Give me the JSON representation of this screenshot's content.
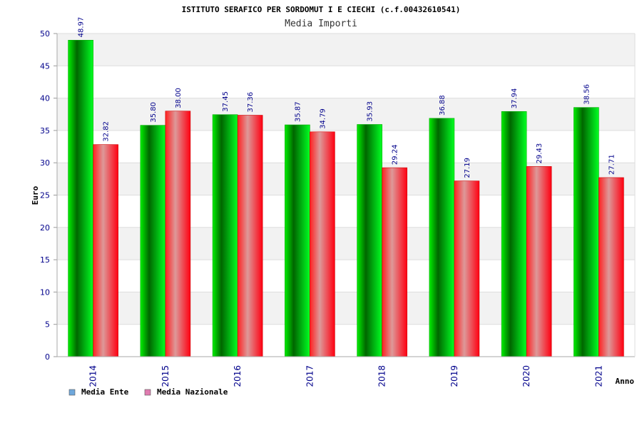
{
  "chart_data": {
    "type": "bar",
    "title": "ISTITUTO SERAFICO PER SORDOMUT I E CIECHI (c.f.00432610541)",
    "subtitle": "Media Importi",
    "xlabel": "Anno",
    "ylabel": "Euro",
    "ylim": [
      0,
      50
    ],
    "yticks": [
      0,
      5,
      10,
      15,
      20,
      25,
      30,
      35,
      40,
      45,
      50
    ],
    "categories": [
      "2014",
      "2015",
      "2016",
      "2017",
      "2018",
      "2019",
      "2020",
      "2021"
    ],
    "series": [
      {
        "name": "Media Ente",
        "values": [
          48.97,
          35.8,
          37.45,
          35.87,
          35.93,
          36.88,
          37.94,
          38.56
        ],
        "labels": [
          "48.97",
          "35.80",
          "37.45",
          "35.87",
          "35.93",
          "36.88",
          "37.94",
          "38.56"
        ],
        "color": "#00cc00",
        "legend_color": "#6fa8dc"
      },
      {
        "name": "Media Nazionale",
        "values": [
          32.82,
          38.0,
          37.36,
          34.79,
          29.24,
          27.19,
          29.43,
          27.71
        ],
        "labels": [
          "32.82",
          "38.00",
          "37.36",
          "34.79",
          "29.24",
          "27.19",
          "29.43",
          "27.71"
        ],
        "color": "#ff1a1a",
        "legend_color": "#e07bb0"
      }
    ],
    "grid": true,
    "legend_position": "bottom-left"
  }
}
